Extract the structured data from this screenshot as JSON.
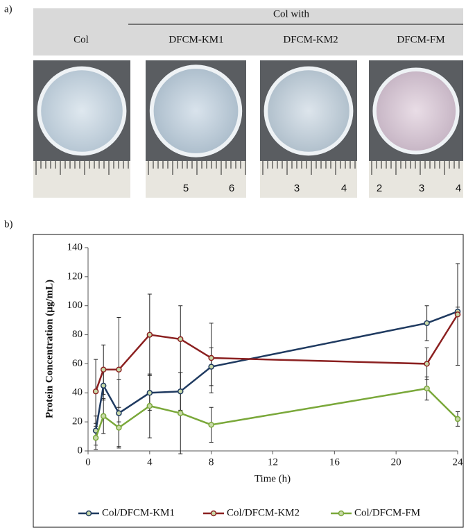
{
  "panel_a": {
    "label": "a)",
    "group_title": "Col with",
    "columns": [
      "Col",
      "DFCM-KM1",
      "DFCM-KM2",
      "DFCM-FM"
    ],
    "ruler_labels": [
      [],
      [
        "5",
        "6"
      ],
      [
        "3",
        "4"
      ],
      [
        "2",
        "3",
        "4"
      ]
    ]
  },
  "panel_b": {
    "label": "b)"
  },
  "chart_data": {
    "type": "line",
    "x_label": "Time (h)",
    "y_label": "Protein Concentration (µg/mL)",
    "x": [
      0.5,
      1,
      2,
      4,
      6,
      8,
      22,
      24
    ],
    "series": [
      {
        "name": "Col/DFCM-KM1",
        "color": "#1f3a60",
        "values": [
          14,
          45,
          26,
          40,
          41,
          58,
          88,
          96
        ],
        "errors": [
          10,
          10,
          23,
          12,
          13,
          13,
          12,
          3
        ]
      },
      {
        "name": "Col/DFCM-KM2",
        "color": "#8b2020",
        "values": [
          41,
          56,
          56,
          80,
          77,
          64,
          60,
          94
        ],
        "errors": [
          22,
          17,
          36,
          28,
          23,
          24,
          11,
          35
        ]
      },
      {
        "name": "Col/DFCM-FM",
        "color": "#7aa83a",
        "values": [
          9,
          24,
          16,
          31,
          26,
          18,
          43,
          22
        ],
        "errors": [
          8,
          12,
          14,
          22,
          28,
          12,
          8,
          5
        ]
      }
    ],
    "xlim": [
      0,
      24
    ],
    "xticks": [
      0,
      4,
      8,
      12,
      16,
      20,
      24
    ],
    "ylim": [
      0,
      140
    ],
    "yticks": [
      0,
      20,
      40,
      60,
      80,
      100,
      120,
      140
    ],
    "legend": "bottom"
  }
}
